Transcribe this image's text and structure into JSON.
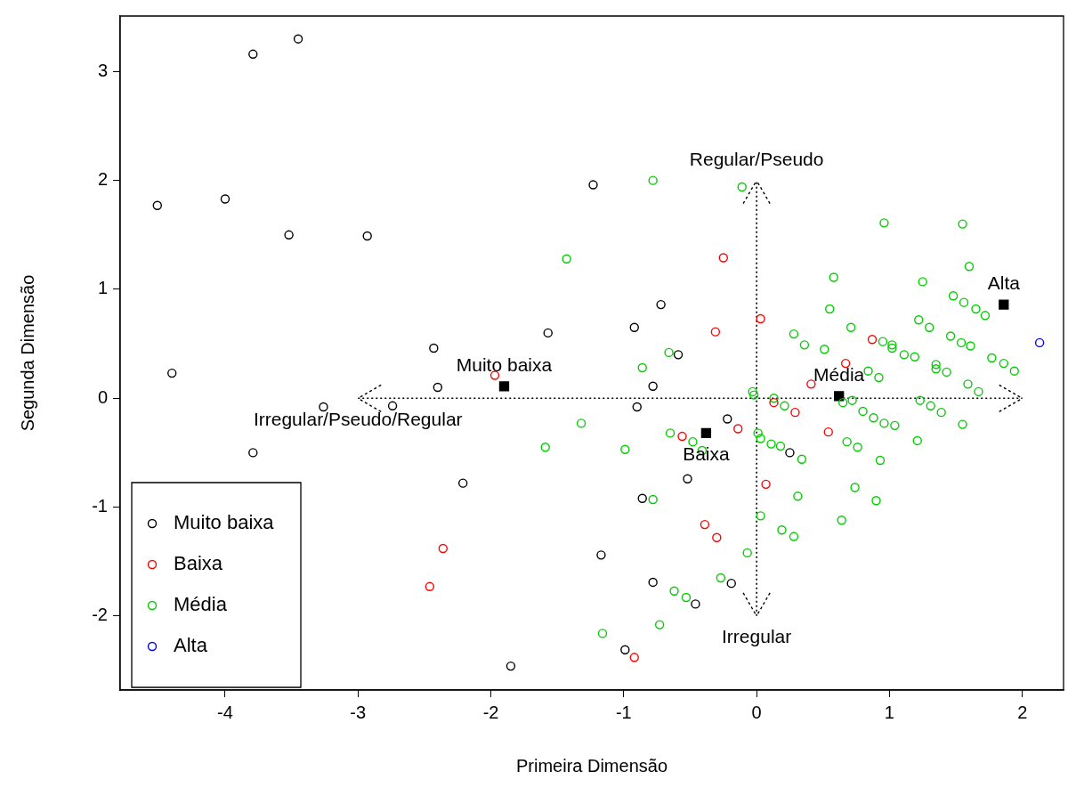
{
  "chart_data": {
    "type": "scatter",
    "xlabel": "Primeira Dimensão",
    "ylabel": "Segunda Dimensão",
    "xlim": [
      -4.79,
      2.31
    ],
    "ylim": [
      -2.68,
      3.51
    ],
    "xticks": [
      -4,
      -3,
      -2,
      -1,
      0,
      1,
      2
    ],
    "yticks": [
      -2,
      -1,
      0,
      1,
      2,
      3
    ],
    "grid": false,
    "legend": "bottom left",
    "marker": "circle",
    "series": [
      {
        "name": "Muito baixa",
        "color": "#000000",
        "x": [
          -3.45,
          -3.79,
          -4.51,
          -4.0,
          -3.52,
          -2.93,
          -4.4,
          -3.26,
          -2.74,
          -3.79,
          -2.43,
          -2.4,
          -1.23,
          -1.57,
          -0.92,
          -0.72,
          -0.59,
          -0.78,
          -0.9,
          -2.21,
          -0.22,
          0.25,
          -0.52,
          -0.86,
          -1.17,
          -0.78,
          -0.19,
          -0.46,
          -1.85,
          -0.99
        ],
        "values": [
          3.3,
          3.16,
          1.77,
          1.83,
          1.5,
          1.49,
          0.23,
          -0.08,
          -0.07,
          -0.5,
          0.46,
          0.1,
          1.96,
          0.6,
          0.65,
          0.86,
          0.4,
          0.11,
          -0.08,
          -0.78,
          -0.19,
          -0.5,
          -0.74,
          -0.92,
          -1.44,
          -1.69,
          -1.7,
          -1.89,
          -2.46,
          -2.31
        ]
      },
      {
        "name": "Baixa",
        "color": "#ff0000",
        "x": [
          -1.97,
          -0.25,
          -0.31,
          0.03,
          0.87,
          0.41,
          0.67,
          0.13,
          0.29,
          -0.14,
          0.54,
          0.07,
          -0.3,
          -0.56,
          -0.39,
          -2.36,
          -2.46,
          -0.92
        ],
        "values": [
          0.21,
          1.29,
          0.61,
          0.73,
          0.54,
          0.13,
          0.32,
          -0.04,
          -0.13,
          -0.28,
          -0.31,
          -0.79,
          -1.28,
          -0.35,
          -1.16,
          -1.38,
          -1.73,
          -2.38
        ]
      },
      {
        "name": "Média",
        "color": "#00cd00",
        "x": [
          -0.78,
          -0.11,
          -1.43,
          -0.66,
          -0.86,
          -0.03,
          -0.02,
          -1.32,
          -1.59,
          -0.99,
          -0.65,
          -0.48,
          -0.41,
          -0.78,
          0.01,
          0.03,
          0.11,
          0.18,
          0.34,
          0.03,
          0.19,
          0.28,
          -0.07,
          -0.27,
          -0.62,
          -0.53,
          -0.73,
          -1.16,
          0.96,
          1.55,
          1.6,
          0.58,
          1.25,
          0.55,
          1.48,
          1.56,
          1.65,
          1.72,
          1.22,
          1.3,
          0.71,
          0.28,
          0.36,
          0.51,
          0.95,
          1.02,
          1.02,
          1.11,
          1.19,
          1.46,
          1.54,
          1.61,
          1.77,
          1.86,
          1.94,
          1.35,
          1.35,
          1.43,
          0.92,
          0.84,
          1.59,
          1.67,
          1.23,
          1.31,
          1.39,
          1.55,
          0.13,
          0.21,
          0.65,
          0.72,
          0.8,
          0.88,
          0.96,
          1.04,
          0.68,
          0.76,
          0.93,
          1.21,
          0.31,
          0.74,
          0.9,
          0.64
        ],
        "values": [
          2.0,
          1.94,
          1.28,
          0.42,
          0.28,
          0.06,
          0.03,
          -0.23,
          -0.45,
          -0.47,
          -0.32,
          -0.4,
          -0.48,
          -0.93,
          -0.32,
          -0.37,
          -0.42,
          -0.44,
          -0.56,
          -1.08,
          -1.21,
          -1.27,
          -1.42,
          -1.65,
          -1.77,
          -1.83,
          -2.08,
          -2.16,
          1.61,
          1.6,
          1.21,
          1.11,
          1.07,
          0.82,
          0.94,
          0.88,
          0.82,
          0.76,
          0.72,
          0.65,
          0.65,
          0.59,
          0.49,
          0.45,
          0.52,
          0.49,
          0.46,
          0.4,
          0.38,
          0.57,
          0.51,
          0.48,
          0.37,
          0.32,
          0.25,
          0.31,
          0.27,
          0.24,
          0.19,
          0.25,
          0.13,
          0.06,
          -0.02,
          -0.07,
          -0.13,
          -0.24,
          0.0,
          -0.07,
          -0.04,
          -0.02,
          -0.12,
          -0.18,
          -0.23,
          -0.25,
          -0.4,
          -0.45,
          -0.57,
          -0.39,
          -0.9,
          -0.82,
          -0.94,
          -1.12
        ]
      },
      {
        "name": "Alta",
        "color": "#0000ff",
        "x": [
          2.13
        ],
        "values": [
          0.51
        ]
      },
      {
        "color": "#000000",
        "marker": "square",
        "x": [
          -1.9,
          -0.38,
          0.62,
          1.86
        ],
        "values": [
          0.11,
          -0.32,
          0.02,
          0.86
        ]
      },
      {
        "type": "line",
        "color": "#000000",
        "line_style": "dotted",
        "marker": "none",
        "x": [
          -3,
          2
        ],
        "values": [
          0,
          0
        ]
      },
      {
        "type": "line",
        "color": "#000000",
        "line_style": "dotted",
        "marker": "none",
        "x": [
          0,
          0
        ],
        "values": [
          -2,
          2
        ]
      }
    ],
    "annotations": [
      {
        "text": "Muito baixa",
        "x": -1.9,
        "y": 0.11
      },
      {
        "text": "Baixa",
        "x": -0.38,
        "y": -0.32
      },
      {
        "text": "Média",
        "x": 0.62,
        "y": 0.02
      },
      {
        "text": "Alta",
        "x": 1.86,
        "y": 0.86
      },
      {
        "text": "Regular/Pseudo",
        "x": 0,
        "y": 2
      },
      {
        "text": "Irregular",
        "x": 0,
        "y": -2
      },
      {
        "text": "Irregular/Pseudo/Regular",
        "x": -3,
        "y": 0
      }
    ]
  }
}
